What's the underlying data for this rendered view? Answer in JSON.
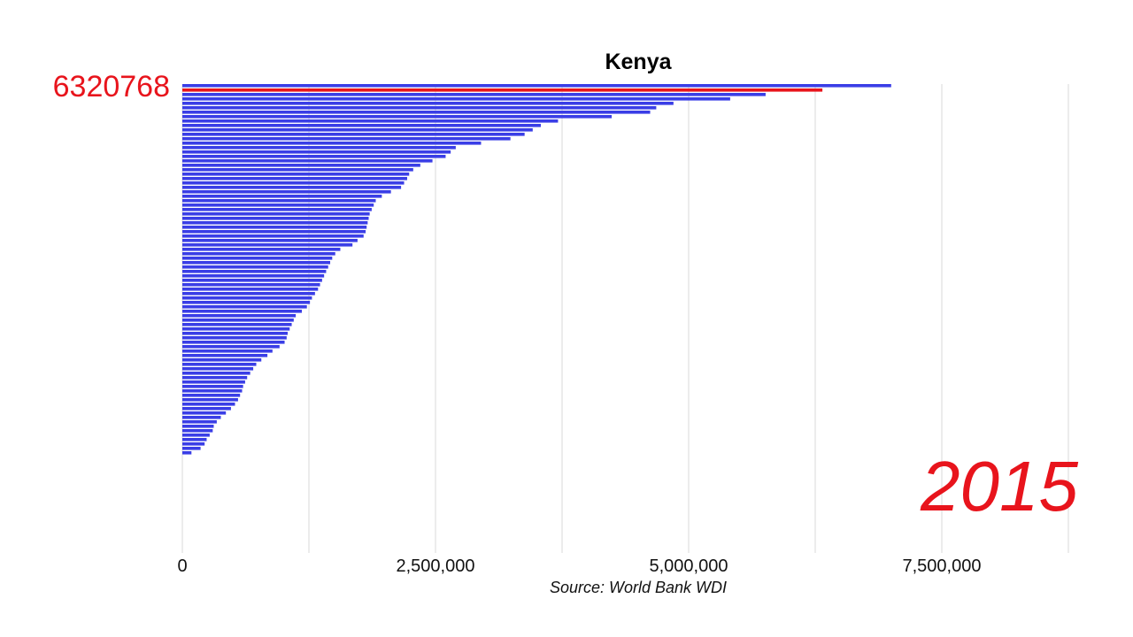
{
  "chart_data": {
    "type": "bar",
    "orientation": "horizontal",
    "title": "Kenya",
    "source": "Source: World Bank WDI",
    "year_label": "2015",
    "highlight": {
      "name": "Kenya",
      "value_label": "6320768",
      "value": 6320768
    },
    "xlim": [
      0,
      8750000
    ],
    "x_ticks": [
      {
        "value": 0,
        "label": "0"
      },
      {
        "value": 2500000,
        "label": "2,500,000"
      },
      {
        "value": 5000000,
        "label": "5,000,000"
      },
      {
        "value": 7500000,
        "label": "7,500,000"
      }
    ],
    "gridlines": [
      0,
      1250000,
      2500000,
      3750000,
      5000000,
      6250000,
      7500000,
      8750000
    ],
    "highlight_index": 1,
    "values": [
      7000000,
      6320768,
      5760000,
      5410000,
      4850000,
      4680000,
      4620000,
      4240000,
      3710000,
      3540000,
      3460000,
      3380000,
      3240000,
      2950000,
      2700000,
      2650000,
      2600000,
      2470000,
      2350000,
      2280000,
      2240000,
      2220000,
      2190000,
      2160000,
      2060000,
      1970000,
      1910000,
      1890000,
      1870000,
      1850000,
      1840000,
      1830000,
      1820000,
      1810000,
      1790000,
      1730000,
      1680000,
      1560000,
      1510000,
      1480000,
      1460000,
      1440000,
      1420000,
      1400000,
      1380000,
      1360000,
      1340000,
      1310000,
      1280000,
      1260000,
      1230000,
      1180000,
      1120000,
      1100000,
      1080000,
      1060000,
      1040000,
      1030000,
      1010000,
      960000,
      890000,
      840000,
      780000,
      730000,
      700000,
      670000,
      640000,
      620000,
      600000,
      590000,
      570000,
      550000,
      520000,
      480000,
      430000,
      380000,
      340000,
      310000,
      300000,
      270000,
      240000,
      220000,
      180000,
      90000
    ],
    "colors": {
      "bar": "#3a3ee6",
      "highlight": "#e8141c"
    }
  }
}
